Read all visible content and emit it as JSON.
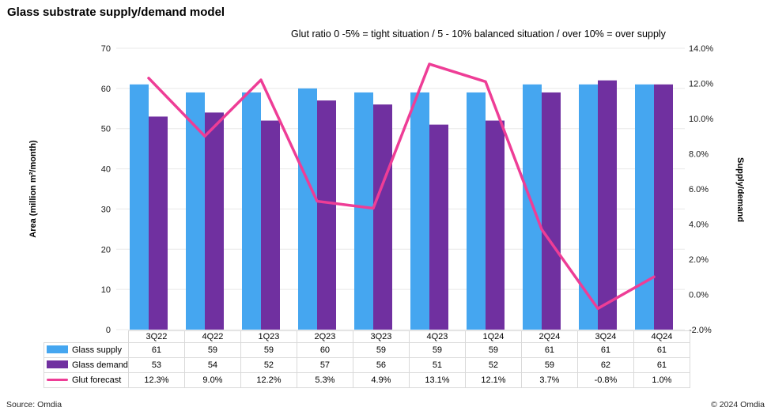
{
  "header": {
    "title": "Glass substrate supply/demand model"
  },
  "chart_data": {
    "type": "combo-bar-line",
    "title": "Glass substrate supply/demand model",
    "annotation": "Glut ratio 0 -5% = tight situation / 5 - 10% balanced situation / over 10% = over supply",
    "categories": [
      "3Q22",
      "4Q22",
      "1Q23",
      "2Q23",
      "3Q23",
      "4Q23",
      "1Q24",
      "2Q24",
      "3Q24",
      "4Q24"
    ],
    "series": [
      {
        "name": "Glass supply",
        "type": "bar",
        "axis": "left",
        "color": "#45a6f0",
        "values": [
          61,
          59,
          59,
          60,
          59,
          59,
          59,
          61,
          61,
          61
        ]
      },
      {
        "name": "Glass demand",
        "type": "bar",
        "axis": "left",
        "color": "#7030a0",
        "values": [
          53,
          54,
          52,
          57,
          56,
          51,
          52,
          59,
          62,
          61
        ]
      },
      {
        "name": "Glut forecast",
        "type": "line",
        "axis": "right",
        "color": "#ee3d96",
        "values": [
          12.3,
          9.0,
          12.2,
          5.3,
          4.9,
          13.1,
          12.1,
          3.7,
          -0.8,
          1.0
        ]
      }
    ],
    "left_axis": {
      "label": "Area (million m²/month)",
      "min": 0,
      "max": 70,
      "step": 10
    },
    "right_axis": {
      "label": "Supply/demand",
      "min": -2,
      "max": 14,
      "step": 2,
      "format": "percent"
    },
    "grid": "horizontal",
    "legend_position": "table-left",
    "gridline_color": "#e8e8e8",
    "tick_color": "#1a1a1a"
  },
  "footer": {
    "source": "Source: Omdia",
    "copyright": "© 2024 Omdia"
  }
}
